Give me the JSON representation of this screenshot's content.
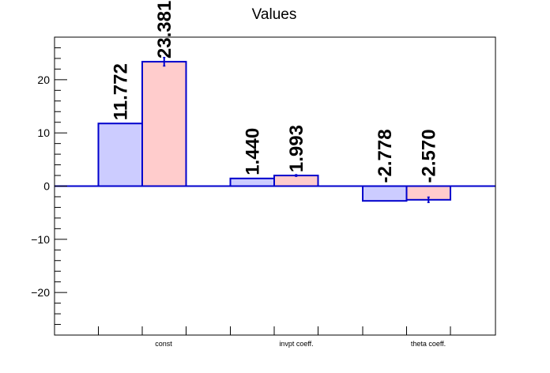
{
  "chart_data": {
    "type": "bar",
    "title": "Values",
    "xlabel": "",
    "ylabel": "",
    "categories": [
      "const",
      "invpt coeff.",
      "theta coeff."
    ],
    "ylim": [
      -28,
      28
    ],
    "yticks": [
      -20,
      -10,
      0,
      10,
      20
    ],
    "y_tick_labels": [
      "−20",
      "−10",
      "0",
      "10",
      "20"
    ],
    "grid": false,
    "legend": "none",
    "series": [
      {
        "values": [
          11.772,
          1.44,
          -2.778
        ],
        "value_labels": [
          "11.772",
          "1.440",
          "-2.778"
        ],
        "errors": [
          0,
          0,
          0
        ],
        "fill": "#ccccff",
        "edge": "#0000cc"
      },
      {
        "values": [
          23.381,
          1.993,
          -2.57
        ],
        "value_labels": [
          "23.381",
          "1.993",
          "-2.570"
        ],
        "errors": [
          0.8,
          0.15,
          0.5
        ],
        "fill": "#ffcccc",
        "edge": "#0000cc"
      }
    ],
    "zero_line_color": "#0000cc"
  }
}
